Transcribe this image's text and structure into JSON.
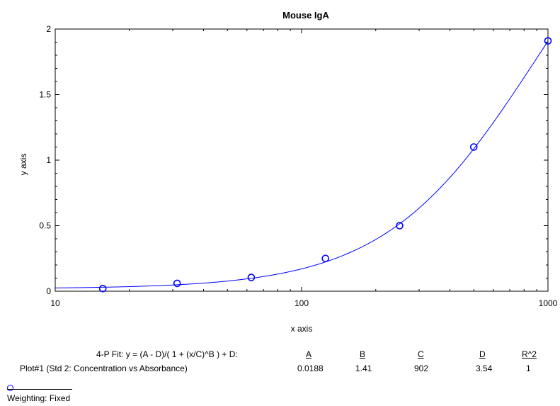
{
  "chart_data": {
    "type": "scatter",
    "title": "Mouse IgA",
    "xlabel": "x axis",
    "ylabel": "y axis",
    "xscale": "log",
    "xlim": [
      10,
      1000
    ],
    "ylim": [
      0,
      2
    ],
    "xticks": [
      "10",
      "100",
      "1000"
    ],
    "yticks": [
      "0",
      "0.5",
      "1",
      "1.5",
      "2"
    ],
    "grid": false,
    "color": "#0000ff",
    "series": [
      {
        "name": "Plot#1 (Std 2: Concentration vs Absorbance)",
        "marker": "circle",
        "x": [
          15.6,
          31.25,
          62.5,
          125,
          250,
          500,
          1000
        ],
        "y": [
          0.02,
          0.06,
          0.105,
          0.25,
          0.5,
          1.1,
          1.91
        ]
      }
    ],
    "fit": {
      "label": "4-P Fit:  y = (A - D)/( 1 + (x/C)^B ) + D:",
      "headers": [
        "A",
        "B",
        "C",
        "D",
        "R^2"
      ],
      "values": [
        "0.0188",
        "1.41",
        "902",
        "3.54",
        "1"
      ],
      "params": {
        "A": 0.0188,
        "B": 1.41,
        "C": 902,
        "D": 3.54
      }
    },
    "weighting": "Weighting: Fixed"
  }
}
